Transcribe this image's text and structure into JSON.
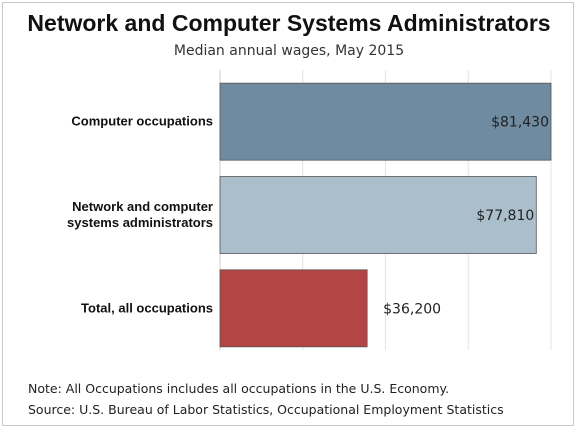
{
  "header": {
    "title": "Network and Computer Systems Administrators",
    "subtitle": "Median annual wages, May 2015"
  },
  "chart_data": {
    "type": "bar",
    "orientation": "horizontal",
    "title": "Network and Computer Systems Administrators",
    "subtitle": "Median annual wages, May 2015",
    "categories": [
      [
        "Computer occupations"
      ],
      [
        "Network and computer",
        "systems administrators"
      ],
      [
        "Total, all occupations"
      ]
    ],
    "values": [
      81430,
      77810,
      36200
    ],
    "value_labels": [
      "$81,430",
      "$77,810",
      "$36,200"
    ],
    "colors": [
      "#6e8ba1",
      "#abbecb",
      "#b54545"
    ],
    "xlim": [
      0,
      81430
    ],
    "grid": true,
    "legend": "none"
  },
  "footer": {
    "note": "Note: All Occupations includes all occupations in the U.S. Economy.",
    "source": "Source: U.S. Bureau of Labor Statistics, Occupational Employment Statistics"
  }
}
